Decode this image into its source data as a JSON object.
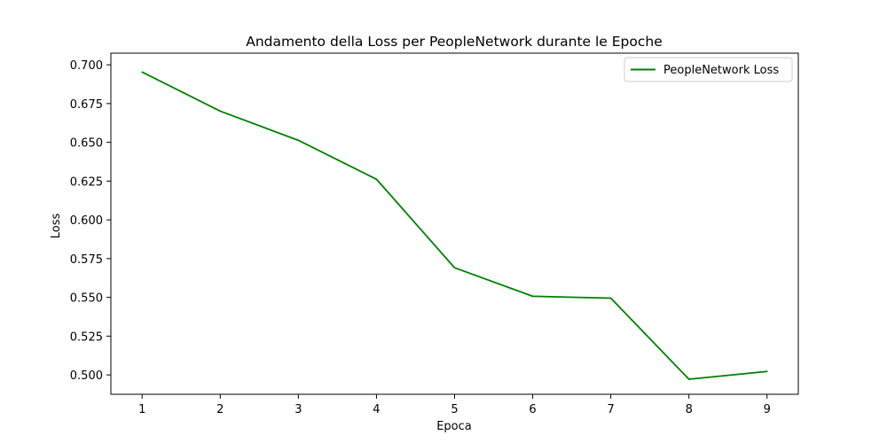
{
  "chart_data": {
    "type": "line",
    "title": "Andamento della Loss per PeopleNetwork durante le Epoche",
    "xlabel": "Epoca",
    "ylabel": "Loss",
    "x": [
      1,
      2,
      3,
      4,
      5,
      6,
      7,
      8,
      9
    ],
    "xticks": [
      "1",
      "2",
      "3",
      "4",
      "5",
      "6",
      "7",
      "8",
      "9"
    ],
    "yticks": [
      "0.500",
      "0.525",
      "0.550",
      "0.575",
      "0.600",
      "0.625",
      "0.650",
      "0.675",
      "0.700"
    ],
    "xlim": [
      0.6,
      9.4
    ],
    "ylim": [
      0.4875,
      0.7075
    ],
    "grid": false,
    "legend_position": "top-right",
    "series": [
      {
        "name": "PeopleNetwork Loss",
        "color": "#008000",
        "values": [
          0.6953,
          0.6701,
          0.6513,
          0.6262,
          0.5691,
          0.5507,
          0.5495,
          0.4972,
          0.5022
        ]
      }
    ]
  }
}
